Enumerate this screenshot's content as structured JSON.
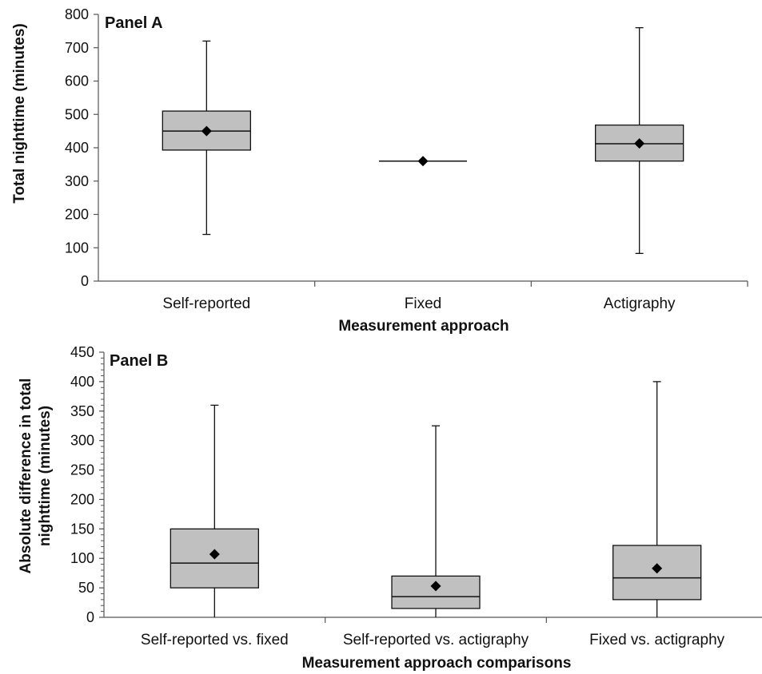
{
  "chart_data": [
    {
      "type": "boxplot",
      "panel_label": "Panel A",
      "xlabel": "Measurement approach",
      "ylabel": "Total nighttime (minutes)",
      "ylim": [
        0,
        800
      ],
      "yticks": [
        0,
        100,
        200,
        300,
        400,
        500,
        600,
        700,
        800
      ],
      "categories": [
        "Self-reported",
        "Fixed",
        "Actigraphy"
      ],
      "boxes": [
        {
          "min": 140,
          "q1": 393,
          "median": 450,
          "q3": 510,
          "max": 720,
          "mean": 450
        },
        {
          "min": 360,
          "q1": 360,
          "median": 360,
          "q3": 360,
          "max": 360,
          "mean": 360
        },
        {
          "min": 83,
          "q1": 360,
          "median": 412,
          "q3": 468,
          "max": 760,
          "mean": 413
        }
      ],
      "box_color": "#c0c0c0",
      "mean_marker": "diamond"
    },
    {
      "type": "boxplot",
      "panel_label": "Panel B",
      "xlabel": "Measurement approach comparisons",
      "ylabel_lines": [
        "Absolute difference in total",
        "nighttime (minutes)"
      ],
      "ylim": [
        0,
        450
      ],
      "yticks": [
        0,
        50,
        100,
        150,
        200,
        250,
        300,
        350,
        400,
        450
      ],
      "categories": [
        "Self-reported vs. fixed",
        "Self-reported vs. actigraphy",
        "Fixed vs. actigraphy"
      ],
      "boxes": [
        {
          "min": 0,
          "q1": 50,
          "median": 92,
          "q3": 150,
          "max": 360,
          "mean": 107
        },
        {
          "min": 0,
          "q1": 15,
          "median": 35,
          "q3": 70,
          "max": 325,
          "mean": 53
        },
        {
          "min": 0,
          "q1": 30,
          "median": 67,
          "q3": 122,
          "max": 400,
          "mean": 83
        }
      ],
      "box_color": "#c0c0c0",
      "mean_marker": "diamond"
    }
  ]
}
